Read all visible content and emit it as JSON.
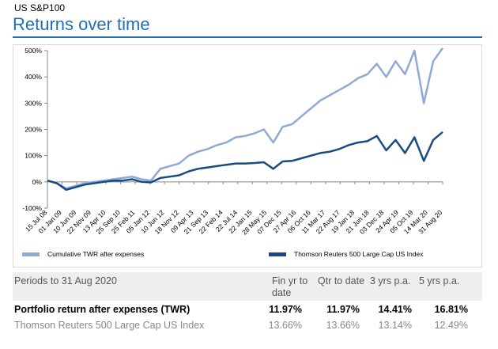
{
  "header": {
    "fund": "US S&P100",
    "title": "Returns over time"
  },
  "chart_data": {
    "type": "line",
    "yaxis": {
      "min": -100,
      "max": 500,
      "step": 100,
      "tick_labels": [
        "-100%",
        "0%",
        "100%",
        "200%",
        "300%",
        "400%",
        "500%"
      ]
    },
    "x_tick_labels": [
      "15 Jul 08",
      "01 Jan 09",
      "10 Jun 09",
      "22 Nov 09",
      "13 Apr 10",
      "25 Sep 10",
      "25 Feb 11",
      "05 Jan 12",
      "10 Jun 12",
      "18 Nov 12",
      "09 Apr 13",
      "21 Sep 13",
      "22 Feb 14",
      "22 Jul 14",
      "22 Jan 15",
      "28 May 15",
      "07 Dec 15",
      "27 Apr 16",
      "06 Oct 16",
      "11 Mar 17",
      "22 Aug 17",
      "19 Jan 18",
      "21 Jun 18",
      "03 Dec 18",
      "24 Apr 19",
      "05 Oct 19",
      "14 Mar 20",
      "31 Aug 20"
    ],
    "series": [
      {
        "name": "Cumulative TWR after expenses",
        "color": "#8faad3",
        "values": [
          5,
          -5,
          -25,
          -15,
          -5,
          0,
          5,
          10,
          15,
          20,
          10,
          5,
          50,
          60,
          70,
          100,
          115,
          125,
          140,
          150,
          170,
          175,
          185,
          200,
          150,
          210,
          220,
          250,
          280,
          310,
          330,
          350,
          370,
          395,
          410,
          450,
          400,
          460,
          410,
          500,
          300,
          460,
          510
        ]
      },
      {
        "name": "Thomson Reuters 500 Large Cap US Index",
        "color": "#1a4a85",
        "values": [
          5,
          -5,
          -30,
          -20,
          -10,
          -5,
          0,
          5,
          5,
          10,
          0,
          -2,
          15,
          20,
          25,
          40,
          50,
          55,
          60,
          65,
          70,
          70,
          72,
          75,
          50,
          78,
          80,
          90,
          100,
          110,
          115,
          125,
          140,
          150,
          155,
          175,
          120,
          160,
          110,
          170,
          80,
          160,
          190
        ]
      }
    ]
  },
  "table": {
    "period_label": "Periods to 31 Aug 2020",
    "columns": [
      "Fin yr to date",
      "Qtr to date",
      "3 yrs p.a.",
      "5 yrs p.a."
    ],
    "rows": [
      {
        "label": "Portfolio return after expenses (TWR)",
        "values": [
          "11.97%",
          "11.97%",
          "14.41%",
          "16.81%"
        ]
      },
      {
        "label": "Thomson Reuters 500 Large Cap US Index",
        "values": [
          "13.66%",
          "13.66%",
          "13.14%",
          "12.49%"
        ]
      }
    ]
  }
}
